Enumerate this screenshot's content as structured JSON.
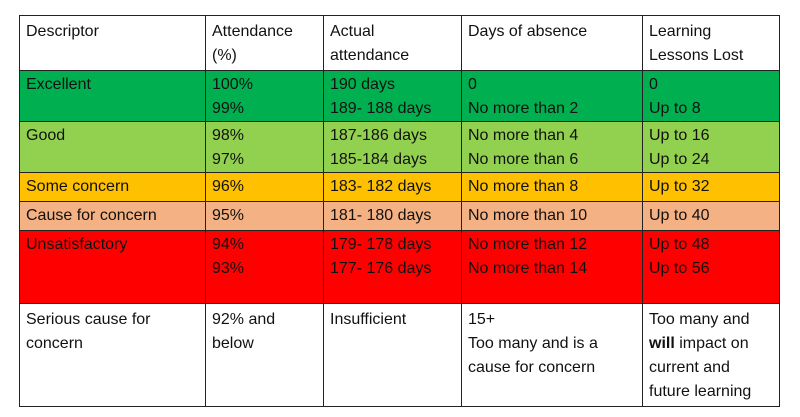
{
  "colors": {
    "excellent": "#00b050",
    "good": "#92d050",
    "some_concern": "#ffc000",
    "cause_for_concern": "#f4b183",
    "unsatisfactory": "#ff0000",
    "serious": "#ffffff"
  },
  "header": {
    "descriptor": "Descriptor",
    "attendance": [
      "Attendance",
      "(%)"
    ],
    "actual": [
      "Actual",
      "attendance"
    ],
    "days": "Days of absence",
    "lessons": [
      "Learning",
      "Lessons Lost"
    ]
  },
  "rows": [
    {
      "descriptor": "Excellent",
      "attendance": [
        "100%",
        "99%"
      ],
      "actual": [
        "190 days",
        "189- 188 days"
      ],
      "days": [
        "0",
        "No more than 2"
      ],
      "lessons": [
        "0",
        "Up to 8"
      ]
    },
    {
      "descriptor": "Good",
      "attendance": [
        "98%",
        "97%"
      ],
      "actual": [
        "187-186 days",
        "185-184 days"
      ],
      "days": [
        "No more than 4",
        "No more than 6"
      ],
      "lessons": [
        "Up to 16",
        "Up to 24"
      ]
    },
    {
      "descriptor": "Some concern",
      "attendance": [
        "96%"
      ],
      "actual": [
        "183- 182 days"
      ],
      "days": [
        "No more than 8"
      ],
      "lessons": [
        "Up to 32"
      ]
    },
    {
      "descriptor": "Cause for concern",
      "attendance": [
        "95%"
      ],
      "actual": [
        "181- 180 days"
      ],
      "days": [
        "No more than 10"
      ],
      "lessons": [
        "Up to 40"
      ]
    },
    {
      "descriptor": "Unsatisfactory",
      "attendance": [
        "94%",
        "93%"
      ],
      "actual": [
        "179- 178 days",
        "177- 176 days"
      ],
      "days": [
        "No more than 12",
        "No more than 14"
      ],
      "lessons": [
        "Up to 48",
        "Up to 56"
      ]
    },
    {
      "descriptor": [
        "Serious cause for",
        "concern"
      ],
      "attendance": [
        "92% and",
        "below"
      ],
      "actual": [
        "Insufficient"
      ],
      "days": [
        "15+",
        "Too many and is a",
        "cause for concern"
      ],
      "lessons_line1": "Too many and",
      "lessons_bold": "will",
      "lessons_line2_rest": " impact on",
      "lessons_line3": "current and",
      "lessons_line4": "future learning"
    }
  ]
}
